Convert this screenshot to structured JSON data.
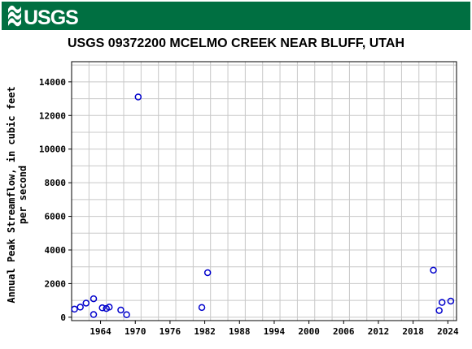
{
  "header": {
    "logo_text": "USGS",
    "banner_color": "#006f41"
  },
  "chart_data": {
    "type": "scatter",
    "title": "USGS 09372200 MCELMO CREEK NEAR BLUFF, UTAH",
    "ylabel_lines": [
      "Annual Peak Streamflow, in cubic feet",
      "per second"
    ],
    "xlabel": "",
    "xlim": [
      1959,
      2025.5
    ],
    "ylim": [
      -200,
      15200
    ],
    "x_ticks": [
      1964,
      1970,
      1976,
      1982,
      1988,
      1994,
      2000,
      2006,
      2012,
      2018,
      2024
    ],
    "x_tick_labels": [
      "1964",
      "1970",
      "1976",
      "1982",
      "1988",
      "1994",
      "2000",
      "2006",
      "2012",
      "2018",
      "2024"
    ],
    "y_ticks": [
      0,
      2000,
      4000,
      6000,
      8000,
      10000,
      12000,
      14000
    ],
    "y_tick_labels": [
      "0",
      "2000",
      "4000",
      "6000",
      "8000",
      "10000",
      "12000",
      "14000"
    ],
    "grid": true,
    "marker_color": "#0000cc",
    "series": [
      {
        "points": [
          {
            "x": 1959.5,
            "y": 480
          },
          {
            "x": 1960.5,
            "y": 600
          },
          {
            "x": 1961.5,
            "y": 840
          },
          {
            "x": 1962.8,
            "y": 1100
          },
          {
            "x": 1962.8,
            "y": 160
          },
          {
            "x": 1964.3,
            "y": 560
          },
          {
            "x": 1965.0,
            "y": 520
          },
          {
            "x": 1965.5,
            "y": 600
          },
          {
            "x": 1967.5,
            "y": 430
          },
          {
            "x": 1968.5,
            "y": 150
          },
          {
            "x": 1970.5,
            "y": 13100
          },
          {
            "x": 1981.5,
            "y": 580
          },
          {
            "x": 1982.5,
            "y": 2650
          },
          {
            "x": 2021.5,
            "y": 2800
          },
          {
            "x": 2022.5,
            "y": 400
          },
          {
            "x": 2023.0,
            "y": 880
          },
          {
            "x": 2024.5,
            "y": 960
          }
        ]
      }
    ]
  }
}
